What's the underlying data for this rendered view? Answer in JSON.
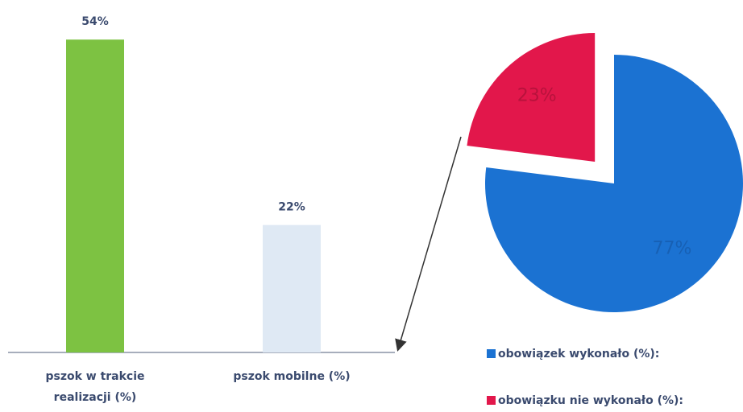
{
  "chart_data": [
    {
      "type": "bar",
      "categories": [
        "pszok w trakcie realizacji (%)",
        "pszok mobilne (%)"
      ],
      "values": [
        54,
        22
      ],
      "value_labels": [
        "54%",
        "22%"
      ],
      "colors": [
        "#7dc242",
        "#dfe9f4"
      ]
    },
    {
      "type": "pie",
      "categories": [
        "obowiązek wykonało (%):",
        "obowiązku nie wykonało (%):"
      ],
      "values": [
        77,
        23
      ],
      "value_labels": [
        "77%",
        "23%"
      ],
      "colors": [
        "#1b72d2",
        "#e2174b"
      ],
      "explode": [
        false,
        true
      ]
    }
  ]
}
